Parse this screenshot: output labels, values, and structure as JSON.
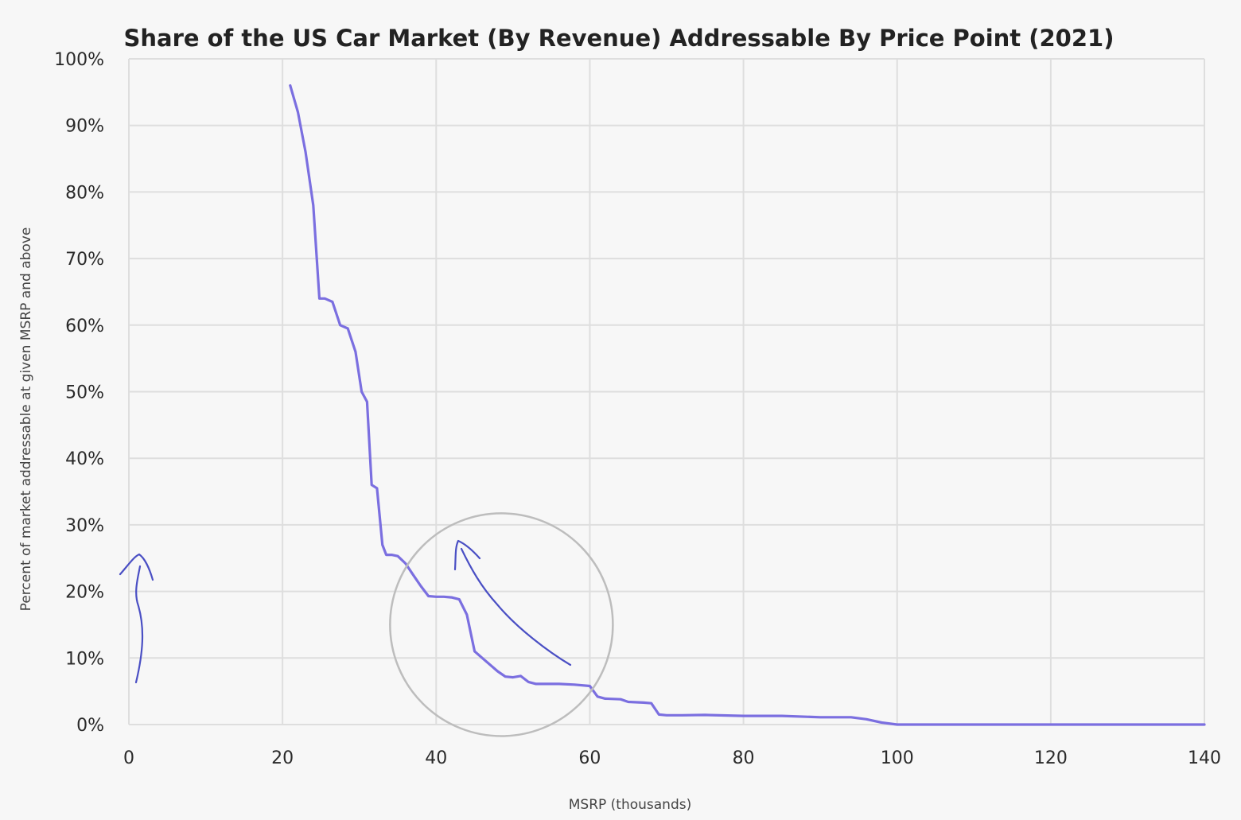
{
  "chart_data": {
    "type": "line",
    "title": "Share of the US Car Market (By Revenue) Addressable By Price Point (2021)",
    "xlabel": "MSRP (thousands)",
    "ylabel": "Percent of market addressable at given MSRP and above",
    "xlim": [
      0,
      140
    ],
    "ylim": [
      0,
      100
    ],
    "x_ticks": [
      "0",
      "20",
      "40",
      "60",
      "80",
      "100",
      "120",
      "140"
    ],
    "y_ticks": [
      "0%",
      "10%",
      "20%",
      "30%",
      "40%",
      "50%",
      "60%",
      "70%",
      "80%",
      "90%",
      "100%"
    ],
    "grid": true,
    "legend": "none",
    "series": [
      {
        "color": "#7b6fe0",
        "x": [
          21,
          22,
          23,
          24,
          24.8,
          25.5,
          26.5,
          27.5,
          28.5,
          29.5,
          30.3,
          31,
          31.6,
          32.3,
          33,
          33.5,
          34.2,
          35,
          36,
          37,
          38,
          39,
          40,
          41,
          42,
          43,
          44,
          45,
          46,
          47,
          48,
          49,
          50,
          51,
          52,
          53,
          54,
          56,
          58,
          60,
          61,
          62,
          64,
          65,
          67,
          68,
          69,
          70,
          72,
          75,
          80,
          85,
          90,
          94,
          96,
          98,
          100,
          110,
          120,
          130,
          140
        ],
        "y": [
          96,
          92,
          86,
          78,
          64,
          64,
          63.5,
          60,
          59.5,
          56,
          50,
          48.5,
          36,
          35.5,
          27,
          25.5,
          25.5,
          25.3,
          24.2,
          22.5,
          20.8,
          19.3,
          19.2,
          19.2,
          19.1,
          18.8,
          16.5,
          11,
          10,
          9,
          8,
          7.2,
          7.1,
          7.3,
          6.4,
          6.1,
          6.1,
          6.1,
          6.0,
          5.8,
          4.2,
          3.9,
          3.8,
          3.4,
          3.3,
          3.2,
          1.5,
          1.4,
          1.4,
          1.45,
          1.3,
          1.3,
          1.1,
          1.1,
          0.8,
          0.3,
          0,
          0,
          0,
          0,
          0
        ]
      }
    ],
    "annotations": {
      "circle": {
        "cx": 48.5,
        "cy": 15,
        "r_x": 14.5,
        "stroke": "#bdbdbd"
      },
      "hand_arrows_color": "#4a4fc4"
    }
  }
}
